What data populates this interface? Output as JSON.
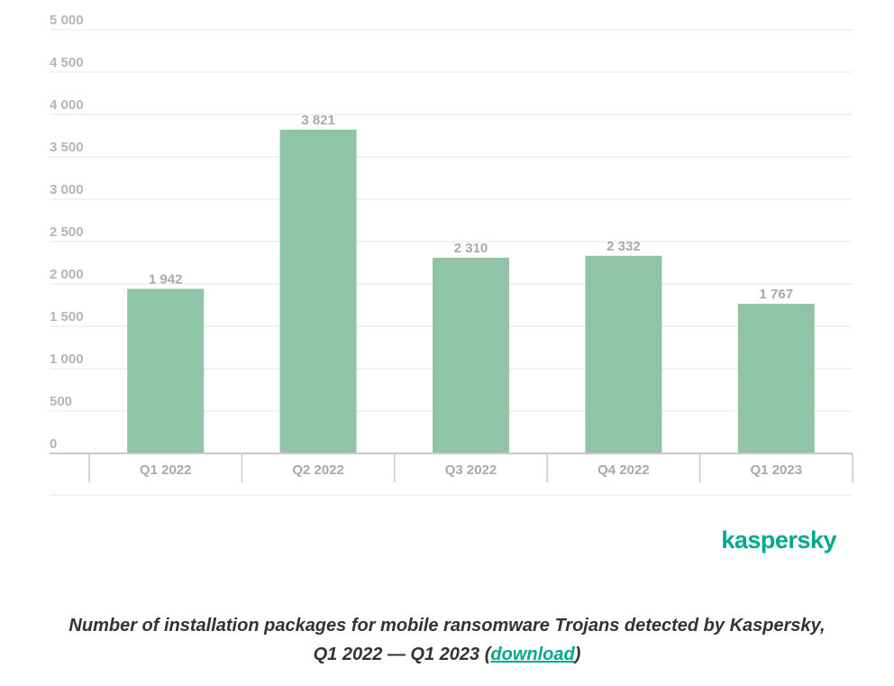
{
  "colors": {
    "bar": "#8fc4a8",
    "grid": "#e6e6e6",
    "axis": "#c8c8c8",
    "brand": "#00a88e",
    "text": "#333333"
  },
  "chart_data": {
    "type": "bar",
    "categories": [
      "Q1 2022",
      "Q2 2022",
      "Q3 2022",
      "Q4 2022",
      "Q1 2023"
    ],
    "values": [
      1942,
      3821,
      2310,
      2332,
      1767
    ],
    "value_labels": [
      "1 942",
      "3 821",
      "2 310",
      "2 332",
      "1 767"
    ],
    "yticks": [
      0,
      500,
      1000,
      1500,
      2000,
      2500,
      3000,
      3500,
      4000,
      4500,
      5000
    ],
    "ytick_labels": [
      "0",
      "500",
      "1 000",
      "1 500",
      "2 000",
      "2 500",
      "3 000",
      "3 500",
      "4 000",
      "4 500",
      "5 000"
    ],
    "ylim": [
      0,
      5000
    ],
    "grid": true,
    "title": "",
    "xlabel": "",
    "ylabel": ""
  },
  "logo": {
    "text": "kaspersky",
    "icon": "kaspersky-logo"
  },
  "caption": {
    "text": "Number of installation packages for mobile ransomware Trojans detected by Kaspersky,",
    "line2": "Q1 2022 — Q1 2023 (",
    "link": "download",
    "close": ")"
  }
}
